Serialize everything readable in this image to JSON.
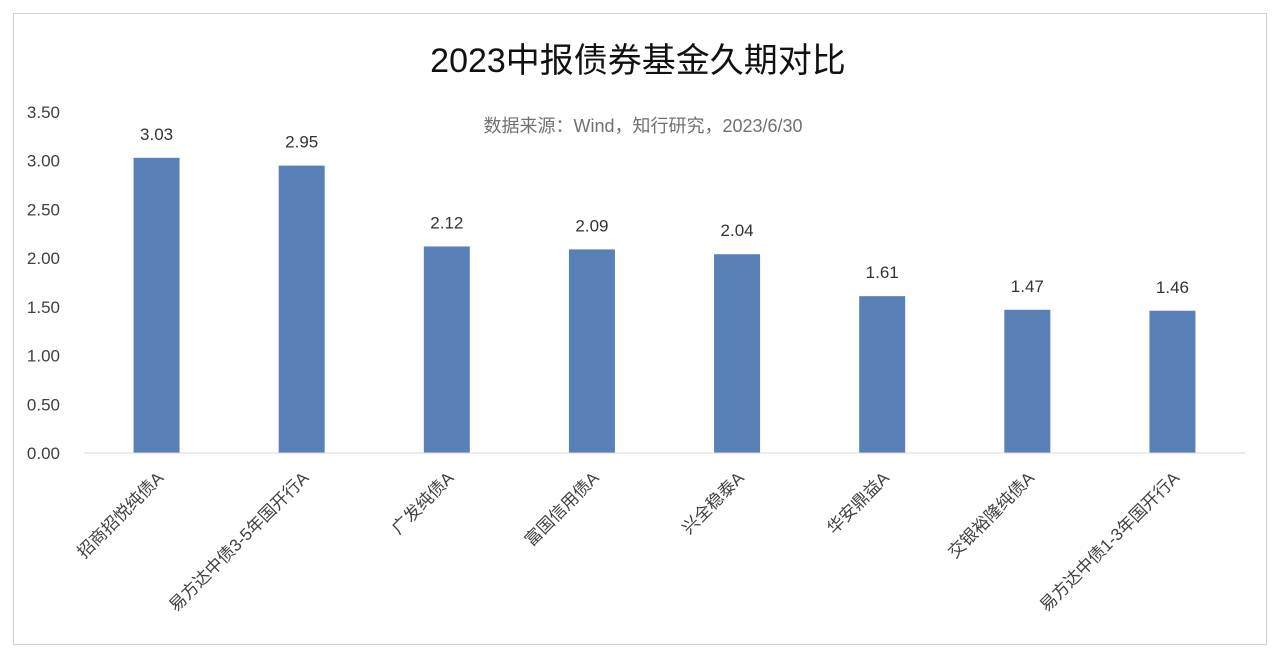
{
  "chart_data": {
    "type": "bar",
    "title": "2023中报债券基金久期对比",
    "subtitle": "数据来源：Wind，知行研究，2023/6/30",
    "categories": [
      "招商招悦纯债A",
      "易方达中债3-5年国开行A",
      "广发纯债A",
      "富国信用债A",
      "兴全稳泰A",
      "华安鼎益A",
      "交银裕隆纯债A",
      "易方达中债1-3年国开行A"
    ],
    "values": [
      3.03,
      2.95,
      2.12,
      2.09,
      2.04,
      1.61,
      1.47,
      1.46
    ],
    "value_labels": [
      "3.03",
      "2.95",
      "2.12",
      "2.09",
      "2.04",
      "1.61",
      "1.47",
      "1.46"
    ],
    "ylim": [
      0,
      3.5
    ],
    "yticks": [
      "0.00",
      "0.50",
      "1.00",
      "1.50",
      "2.00",
      "2.50",
      "3.00",
      "3.50"
    ],
    "ytick_values": [
      0,
      0.5,
      1,
      1.5,
      2,
      2.5,
      3,
      3.5
    ],
    "xlabel": "",
    "ylabel": "",
    "grid": false,
    "legend": "none",
    "bar_color": "#5a80b8"
  }
}
